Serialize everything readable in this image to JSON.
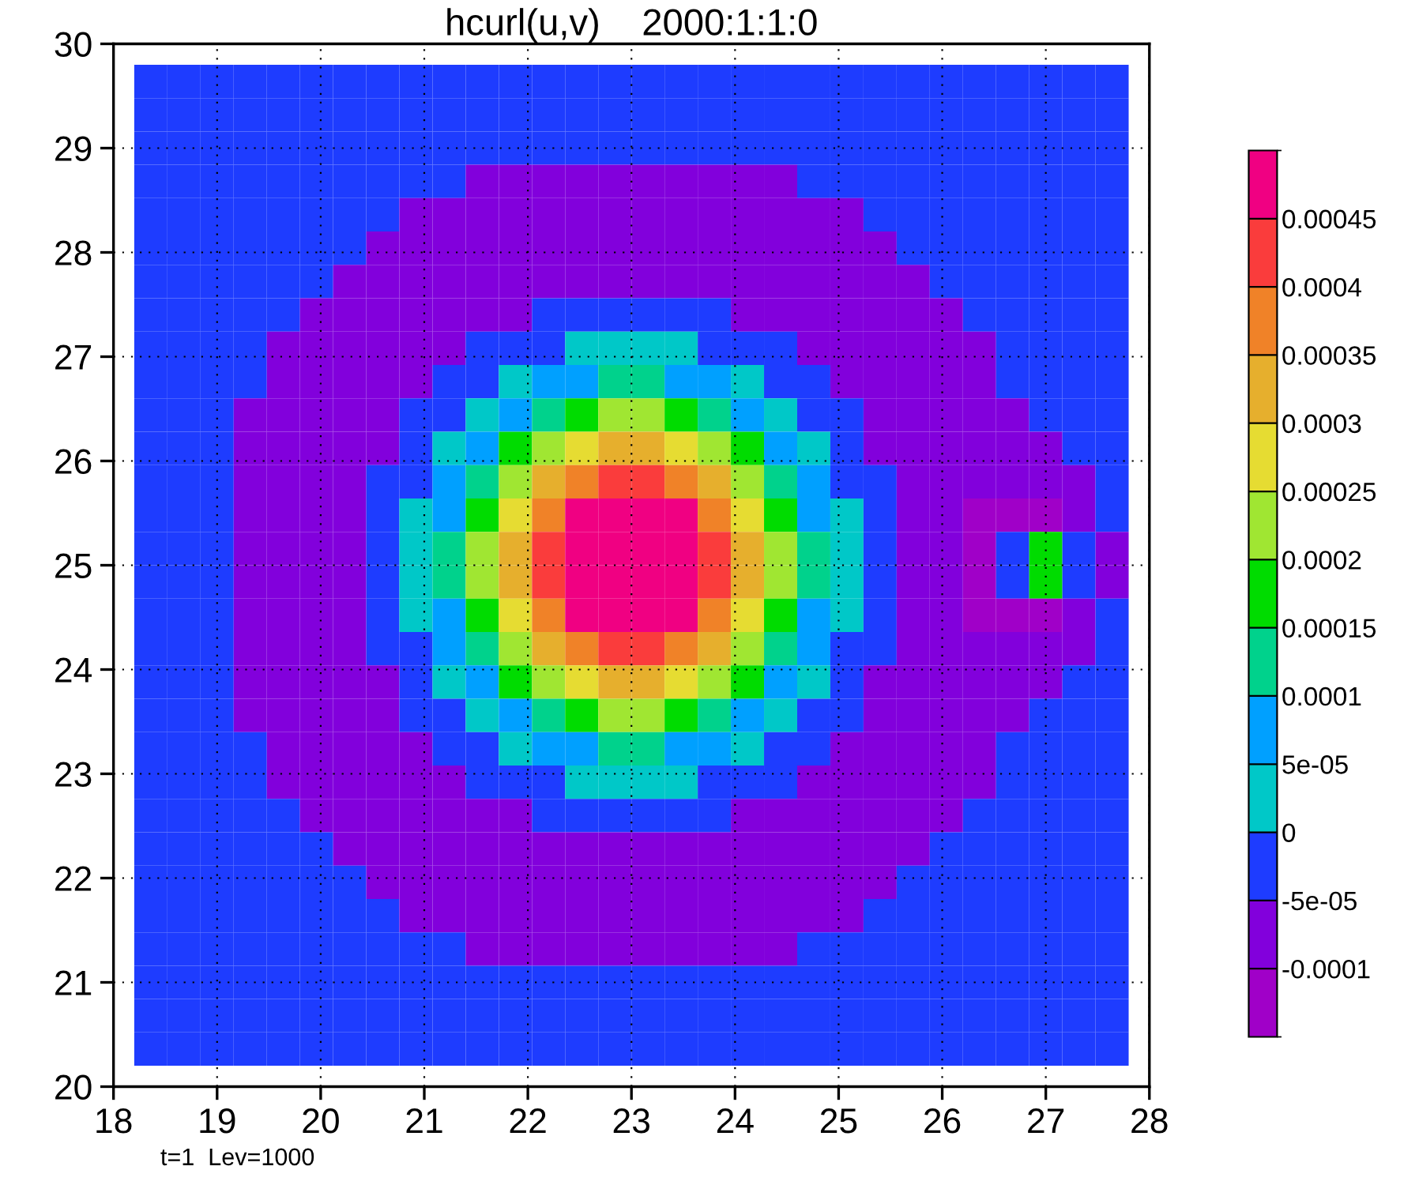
{
  "chart_data": {
    "type": "heatmap",
    "title": "hcurl(u,v)    2000:1:1:0",
    "annotations": [
      "t=1  Lev=1000"
    ],
    "x": [
      18.36,
      18.68,
      19.0,
      19.32,
      19.64,
      19.96,
      20.28,
      20.6,
      20.92,
      21.24,
      21.56,
      21.88,
      22.2,
      22.52,
      22.84,
      23.16,
      23.48,
      23.8,
      24.12,
      24.44,
      24.76,
      25.08,
      25.4,
      25.72,
      26.04,
      26.36,
      26.68,
      27.0,
      27.32,
      27.64
    ],
    "y": [
      29.64,
      29.32,
      29.0,
      28.68,
      28.36,
      28.04,
      27.72,
      27.4,
      27.08,
      26.76,
      26.44,
      26.12,
      25.8,
      25.48,
      25.16,
      24.84,
      24.52,
      24.2,
      23.88,
      23.56,
      23.24,
      22.92,
      22.6,
      22.28,
      21.96,
      21.64,
      21.32,
      21.0,
      20.68,
      20.36
    ],
    "cells": [
      [
        -2.5e-05,
        -2.5e-05,
        -2.5e-05,
        -2.5e-05,
        -2.5e-05,
        -2.5e-05,
        -2.5e-05,
        -2.5e-05,
        -2.5e-05,
        -2.5e-05,
        -2.5e-05,
        -2.5e-05,
        -2.5e-05,
        -2.5e-05,
        -2.5e-05,
        -2.5e-05,
        -2.5e-05,
        -2.5e-05,
        -2.5e-05,
        -2.5e-05,
        -2.5e-05,
        -2.5e-05,
        -2.5e-05,
        -2.5e-05,
        -2.5e-05,
        -2.5e-05,
        -2.5e-05,
        -2.5e-05,
        -2.5e-05,
        -2.5e-05
      ],
      [
        -2.5e-05,
        -2.5e-05,
        -2.5e-05,
        -2.5e-05,
        -2.5e-05,
        -2.5e-05,
        -2.5e-05,
        -2.5e-05,
        -2.5e-05,
        -2.5e-05,
        -2.5e-05,
        -2.5e-05,
        -2.5e-05,
        -2.5e-05,
        -2.5e-05,
        -2.5e-05,
        -2.5e-05,
        -2.5e-05,
        -2.5e-05,
        -2.5e-05,
        -2.5e-05,
        -2.5e-05,
        -2.5e-05,
        -2.5e-05,
        -2.5e-05,
        -2.5e-05,
        -2.5e-05,
        -2.5e-05,
        -2.5e-05,
        -2.5e-05
      ],
      [
        -2.5e-05,
        -2.5e-05,
        -2.5e-05,
        -2.5e-05,
        -2.5e-05,
        -2.5e-05,
        -2.5e-05,
        -2.5e-05,
        -2.5e-05,
        -2.5e-05,
        -2.5e-05,
        -2.5e-05,
        -2.5e-05,
        -2.5e-05,
        -2.5e-05,
        -2.5e-05,
        -2.5e-05,
        -2.5e-05,
        -2.5e-05,
        -2.5e-05,
        -2.5e-05,
        -2.5e-05,
        -2.5e-05,
        -2.5e-05,
        -2.5e-05,
        -2.5e-05,
        -2.5e-05,
        -2.5e-05,
        -2.5e-05,
        -2.5e-05
      ],
      [
        -2.5e-05,
        -2.5e-05,
        -2.5e-05,
        -2.5e-05,
        -2.5e-05,
        -2.5e-05,
        -2.5e-05,
        -2.5e-05,
        -2.5e-05,
        -2.5e-05,
        -7.5e-05,
        -7.5e-05,
        -7.5e-05,
        -7.5e-05,
        -7.5e-05,
        -7.5e-05,
        -7.5e-05,
        -7.5e-05,
        -7.5e-05,
        -7.5e-05,
        -2.5e-05,
        -2.5e-05,
        -2.5e-05,
        -2.5e-05,
        -2.5e-05,
        -2.5e-05,
        -2.5e-05,
        -2.5e-05,
        -2.5e-05,
        -2.5e-05
      ],
      [
        -2.5e-05,
        -2.5e-05,
        -2.5e-05,
        -2.5e-05,
        -2.5e-05,
        -2.5e-05,
        -2.5e-05,
        -2.5e-05,
        -7.5e-05,
        -7.5e-05,
        -7.5e-05,
        -7.5e-05,
        -7.5e-05,
        -7.5e-05,
        -7.5e-05,
        -7.5e-05,
        -7.5e-05,
        -7.5e-05,
        -7.5e-05,
        -7.5e-05,
        -7.5e-05,
        -7.5e-05,
        -2.5e-05,
        -2.5e-05,
        -2.5e-05,
        -2.5e-05,
        -2.5e-05,
        -2.5e-05,
        -2.5e-05,
        -2.5e-05
      ],
      [
        -2.5e-05,
        -2.5e-05,
        -2.5e-05,
        -2.5e-05,
        -2.5e-05,
        -2.5e-05,
        -2.5e-05,
        -7.5e-05,
        -7.5e-05,
        -7.5e-05,
        -7.5e-05,
        -7.5e-05,
        -7.5e-05,
        -7.5e-05,
        -7.5e-05,
        -7.5e-05,
        -7.5e-05,
        -7.5e-05,
        -7.5e-05,
        -7.5e-05,
        -7.5e-05,
        -7.5e-05,
        -7.5e-05,
        -2.5e-05,
        -2.5e-05,
        -2.5e-05,
        -2.5e-05,
        -2.5e-05,
        -2.5e-05,
        -2.5e-05
      ],
      [
        -2.5e-05,
        -2.5e-05,
        -2.5e-05,
        -2.5e-05,
        -2.5e-05,
        -2.5e-05,
        -7.5e-05,
        -7.5e-05,
        -7.5e-05,
        -7.5e-05,
        -7.5e-05,
        -7.5e-05,
        -7.5e-05,
        -7.5e-05,
        -7.5e-05,
        -7.5e-05,
        -7.5e-05,
        -7.5e-05,
        -7.5e-05,
        -7.5e-05,
        -7.5e-05,
        -7.5e-05,
        -7.5e-05,
        -7.5e-05,
        -2.5e-05,
        -2.5e-05,
        -2.5e-05,
        -2.5e-05,
        -2.5e-05,
        -2.5e-05
      ],
      [
        -2.5e-05,
        -2.5e-05,
        -2.5e-05,
        -2.5e-05,
        -2.5e-05,
        -7.5e-05,
        -7.5e-05,
        -7.5e-05,
        -7.5e-05,
        -7.5e-05,
        -7.5e-05,
        -7.5e-05,
        -2.5e-05,
        -2.5e-05,
        -2.5e-05,
        -2.5e-05,
        -2.5e-05,
        -2.5e-05,
        -7.5e-05,
        -7.5e-05,
        -7.5e-05,
        -7.5e-05,
        -7.5e-05,
        -7.5e-05,
        -7.5e-05,
        -2.5e-05,
        -2.5e-05,
        -2.5e-05,
        -2.5e-05,
        -2.5e-05
      ],
      [
        -2.5e-05,
        -2.5e-05,
        -2.5e-05,
        -2.5e-05,
        -7.5e-05,
        -7.5e-05,
        -7.5e-05,
        -7.5e-05,
        -7.5e-05,
        -7.5e-05,
        -2.5e-05,
        -2.5e-05,
        -2.5e-05,
        2.5e-05,
        2.5e-05,
        2.5e-05,
        2.5e-05,
        -2.5e-05,
        -2.5e-05,
        -2.5e-05,
        -7.5e-05,
        -7.5e-05,
        -7.5e-05,
        -7.5e-05,
        -7.5e-05,
        -7.5e-05,
        -2.5e-05,
        -2.5e-05,
        -2.5e-05,
        -2.5e-05
      ],
      [
        -2.5e-05,
        -2.5e-05,
        -2.5e-05,
        -2.5e-05,
        -7.5e-05,
        -7.5e-05,
        -7.5e-05,
        -7.5e-05,
        -7.5e-05,
        -2.5e-05,
        -2.5e-05,
        2.5e-05,
        7.5e-05,
        7.5e-05,
        0.000125,
        0.000125,
        7.5e-05,
        7.5e-05,
        2.5e-05,
        -2.5e-05,
        -2.5e-05,
        -7.5e-05,
        -7.5e-05,
        -7.5e-05,
        -7.5e-05,
        -7.5e-05,
        -2.5e-05,
        -2.5e-05,
        -2.5e-05,
        -2.5e-05
      ],
      [
        -2.5e-05,
        -2.5e-05,
        -2.5e-05,
        -7.5e-05,
        -7.5e-05,
        -7.5e-05,
        -7.5e-05,
        -7.5e-05,
        -2.5e-05,
        -2.5e-05,
        2.5e-05,
        7.5e-05,
        0.000125,
        0.000175,
        0.000225,
        0.000225,
        0.000175,
        0.000125,
        7.5e-05,
        2.5e-05,
        -2.5e-05,
        -2.5e-05,
        -7.5e-05,
        -7.5e-05,
        -7.5e-05,
        -7.5e-05,
        -7.5e-05,
        -2.5e-05,
        -2.5e-05,
        -2.5e-05
      ],
      [
        -2.5e-05,
        -2.5e-05,
        -2.5e-05,
        -7.5e-05,
        -7.5e-05,
        -7.5e-05,
        -7.5e-05,
        -7.5e-05,
        -2.5e-05,
        2.5e-05,
        7.5e-05,
        0.000175,
        0.000225,
        0.000275,
        0.000325,
        0.000325,
        0.000275,
        0.000225,
        0.000175,
        7.5e-05,
        2.5e-05,
        -2.5e-05,
        -7.5e-05,
        -7.5e-05,
        -7.5e-05,
        -7.5e-05,
        -7.5e-05,
        -7.5e-05,
        -2.5e-05,
        -2.5e-05
      ],
      [
        -2.5e-05,
        -2.5e-05,
        -2.5e-05,
        -7.5e-05,
        -7.5e-05,
        -7.5e-05,
        -7.5e-05,
        -2.5e-05,
        -2.5e-05,
        7.5e-05,
        0.000125,
        0.000225,
        0.000325,
        0.000375,
        0.000425,
        0.000425,
        0.000375,
        0.000325,
        0.000225,
        0.000125,
        7.5e-05,
        -2.5e-05,
        -2.5e-05,
        -7.5e-05,
        -7.5e-05,
        -7.5e-05,
        -7.5e-05,
        -7.5e-05,
        -7.5e-05,
        -2.5e-05
      ],
      [
        -2.5e-05,
        -2.5e-05,
        -2.5e-05,
        -7.5e-05,
        -7.5e-05,
        -7.5e-05,
        -7.5e-05,
        -2.5e-05,
        2.5e-05,
        7.5e-05,
        0.000175,
        0.000275,
        0.000375,
        0.00048,
        0.00048,
        0.00048,
        0.00048,
        0.000375,
        0.000275,
        0.000175,
        7.5e-05,
        2.5e-05,
        -2.5e-05,
        -7.5e-05,
        -7.5e-05,
        -0.00012,
        -0.00012,
        -0.00012,
        -7.5e-05,
        -2.5e-05
      ],
      [
        -2.5e-05,
        -2.5e-05,
        -2.5e-05,
        -7.5e-05,
        -7.5e-05,
        -7.5e-05,
        -7.5e-05,
        -2.5e-05,
        2.5e-05,
        0.000125,
        0.000225,
        0.000325,
        0.000425,
        0.00048,
        0.00048,
        0.00048,
        0.00048,
        0.000425,
        0.000325,
        0.000225,
        0.000125,
        2.5e-05,
        -2.5e-05,
        -7.5e-05,
        -7.5e-05,
        -0.00012,
        -2.5e-05,
        0.000175,
        -2.5e-05,
        -7.5e-05
      ],
      [
        -2.5e-05,
        -2.5e-05,
        -2.5e-05,
        -7.5e-05,
        -7.5e-05,
        -7.5e-05,
        -7.5e-05,
        -2.5e-05,
        2.5e-05,
        0.000125,
        0.000225,
        0.000325,
        0.000425,
        0.00048,
        0.00048,
        0.00048,
        0.00048,
        0.000425,
        0.000325,
        0.000225,
        0.000125,
        2.5e-05,
        -2.5e-05,
        -7.5e-05,
        -7.5e-05,
        -0.00012,
        -2.5e-05,
        0.000175,
        -2.5e-05,
        -7.5e-05
      ],
      [
        -2.5e-05,
        -2.5e-05,
        -2.5e-05,
        -7.5e-05,
        -7.5e-05,
        -7.5e-05,
        -7.5e-05,
        -2.5e-05,
        2.5e-05,
        7.5e-05,
        0.000175,
        0.000275,
        0.000375,
        0.00048,
        0.00048,
        0.00048,
        0.00048,
        0.000375,
        0.000275,
        0.000175,
        7.5e-05,
        2.5e-05,
        -2.5e-05,
        -7.5e-05,
        -7.5e-05,
        -0.00012,
        -0.00012,
        -0.00012,
        -7.5e-05,
        -2.5e-05
      ],
      [
        -2.5e-05,
        -2.5e-05,
        -2.5e-05,
        -7.5e-05,
        -7.5e-05,
        -7.5e-05,
        -7.5e-05,
        -2.5e-05,
        -2.5e-05,
        7.5e-05,
        0.000125,
        0.000225,
        0.000325,
        0.000375,
        0.000425,
        0.000425,
        0.000375,
        0.000325,
        0.000225,
        0.000125,
        7.5e-05,
        -2.5e-05,
        -2.5e-05,
        -7.5e-05,
        -7.5e-05,
        -7.5e-05,
        -7.5e-05,
        -7.5e-05,
        -7.5e-05,
        -2.5e-05
      ],
      [
        -2.5e-05,
        -2.5e-05,
        -2.5e-05,
        -7.5e-05,
        -7.5e-05,
        -7.5e-05,
        -7.5e-05,
        -7.5e-05,
        -2.5e-05,
        2.5e-05,
        7.5e-05,
        0.000175,
        0.000225,
        0.000275,
        0.000325,
        0.000325,
        0.000275,
        0.000225,
        0.000175,
        7.5e-05,
        2.5e-05,
        -2.5e-05,
        -7.5e-05,
        -7.5e-05,
        -7.5e-05,
        -7.5e-05,
        -7.5e-05,
        -7.5e-05,
        -2.5e-05,
        -2.5e-05
      ],
      [
        -2.5e-05,
        -2.5e-05,
        -2.5e-05,
        -7.5e-05,
        -7.5e-05,
        -7.5e-05,
        -7.5e-05,
        -7.5e-05,
        -2.5e-05,
        -2.5e-05,
        2.5e-05,
        7.5e-05,
        0.000125,
        0.000175,
        0.000225,
        0.000225,
        0.000175,
        0.000125,
        7.5e-05,
        2.5e-05,
        -2.5e-05,
        -2.5e-05,
        -7.5e-05,
        -7.5e-05,
        -7.5e-05,
        -7.5e-05,
        -7.5e-05,
        -2.5e-05,
        -2.5e-05,
        -2.5e-05
      ],
      [
        -2.5e-05,
        -2.5e-05,
        -2.5e-05,
        -2.5e-05,
        -7.5e-05,
        -7.5e-05,
        -7.5e-05,
        -7.5e-05,
        -7.5e-05,
        -2.5e-05,
        -2.5e-05,
        2.5e-05,
        7.5e-05,
        7.5e-05,
        0.000125,
        0.000125,
        7.5e-05,
        7.5e-05,
        2.5e-05,
        -2.5e-05,
        -2.5e-05,
        -7.5e-05,
        -7.5e-05,
        -7.5e-05,
        -7.5e-05,
        -7.5e-05,
        -2.5e-05,
        -2.5e-05,
        -2.5e-05,
        -2.5e-05
      ],
      [
        -2.5e-05,
        -2.5e-05,
        -2.5e-05,
        -2.5e-05,
        -7.5e-05,
        -7.5e-05,
        -7.5e-05,
        -7.5e-05,
        -7.5e-05,
        -7.5e-05,
        -2.5e-05,
        -2.5e-05,
        -2.5e-05,
        2.5e-05,
        2.5e-05,
        2.5e-05,
        2.5e-05,
        -2.5e-05,
        -2.5e-05,
        -2.5e-05,
        -7.5e-05,
        -7.5e-05,
        -7.5e-05,
        -7.5e-05,
        -7.5e-05,
        -7.5e-05,
        -2.5e-05,
        -2.5e-05,
        -2.5e-05,
        -2.5e-05
      ],
      [
        -2.5e-05,
        -2.5e-05,
        -2.5e-05,
        -2.5e-05,
        -2.5e-05,
        -7.5e-05,
        -7.5e-05,
        -7.5e-05,
        -7.5e-05,
        -7.5e-05,
        -7.5e-05,
        -7.5e-05,
        -2.5e-05,
        -2.5e-05,
        -2.5e-05,
        -2.5e-05,
        -2.5e-05,
        -2.5e-05,
        -7.5e-05,
        -7.5e-05,
        -7.5e-05,
        -7.5e-05,
        -7.5e-05,
        -7.5e-05,
        -7.5e-05,
        -2.5e-05,
        -2.5e-05,
        -2.5e-05,
        -2.5e-05,
        -2.5e-05
      ],
      [
        -2.5e-05,
        -2.5e-05,
        -2.5e-05,
        -2.5e-05,
        -2.5e-05,
        -2.5e-05,
        -7.5e-05,
        -7.5e-05,
        -7.5e-05,
        -7.5e-05,
        -7.5e-05,
        -7.5e-05,
        -7.5e-05,
        -7.5e-05,
        -7.5e-05,
        -7.5e-05,
        -7.5e-05,
        -7.5e-05,
        -7.5e-05,
        -7.5e-05,
        -7.5e-05,
        -7.5e-05,
        -7.5e-05,
        -7.5e-05,
        -2.5e-05,
        -2.5e-05,
        -2.5e-05,
        -2.5e-05,
        -2.5e-05,
        -2.5e-05
      ],
      [
        -2.5e-05,
        -2.5e-05,
        -2.5e-05,
        -2.5e-05,
        -2.5e-05,
        -2.5e-05,
        -2.5e-05,
        -7.5e-05,
        -7.5e-05,
        -7.5e-05,
        -7.5e-05,
        -7.5e-05,
        -7.5e-05,
        -7.5e-05,
        -7.5e-05,
        -7.5e-05,
        -7.5e-05,
        -7.5e-05,
        -7.5e-05,
        -7.5e-05,
        -7.5e-05,
        -7.5e-05,
        -7.5e-05,
        -2.5e-05,
        -2.5e-05,
        -2.5e-05,
        -2.5e-05,
        -2.5e-05,
        -2.5e-05,
        -2.5e-05
      ],
      [
        -2.5e-05,
        -2.5e-05,
        -2.5e-05,
        -2.5e-05,
        -2.5e-05,
        -2.5e-05,
        -2.5e-05,
        -2.5e-05,
        -7.5e-05,
        -7.5e-05,
        -7.5e-05,
        -7.5e-05,
        -7.5e-05,
        -7.5e-05,
        -7.5e-05,
        -7.5e-05,
        -7.5e-05,
        -7.5e-05,
        -7.5e-05,
        -7.5e-05,
        -7.5e-05,
        -7.5e-05,
        -2.5e-05,
        -2.5e-05,
        -2.5e-05,
        -2.5e-05,
        -2.5e-05,
        -2.5e-05,
        -2.5e-05,
        -2.5e-05
      ],
      [
        -2.5e-05,
        -2.5e-05,
        -2.5e-05,
        -2.5e-05,
        -2.5e-05,
        -2.5e-05,
        -2.5e-05,
        -2.5e-05,
        -2.5e-05,
        -2.5e-05,
        -7.5e-05,
        -7.5e-05,
        -7.5e-05,
        -7.5e-05,
        -7.5e-05,
        -7.5e-05,
        -7.5e-05,
        -7.5e-05,
        -7.5e-05,
        -7.5e-05,
        -2.5e-05,
        -2.5e-05,
        -2.5e-05,
        -2.5e-05,
        -2.5e-05,
        -2.5e-05,
        -2.5e-05,
        -2.5e-05,
        -2.5e-05,
        -2.5e-05
      ],
      [
        -2.5e-05,
        -2.5e-05,
        -2.5e-05,
        -2.5e-05,
        -2.5e-05,
        -2.5e-05,
        -2.5e-05,
        -2.5e-05,
        -2.5e-05,
        -2.5e-05,
        -2.5e-05,
        -2.5e-05,
        -2.5e-05,
        -2.5e-05,
        -2.5e-05,
        -2.5e-05,
        -2.5e-05,
        -2.5e-05,
        -2.5e-05,
        -2.5e-05,
        -2.5e-05,
        -2.5e-05,
        -2.5e-05,
        -2.5e-05,
        -2.5e-05,
        -2.5e-05,
        -2.5e-05,
        -2.5e-05,
        -2.5e-05,
        -2.5e-05
      ],
      [
        -2.5e-05,
        -2.5e-05,
        -2.5e-05,
        -2.5e-05,
        -2.5e-05,
        -2.5e-05,
        -2.5e-05,
        -2.5e-05,
        -2.5e-05,
        -2.5e-05,
        -2.5e-05,
        -2.5e-05,
        -2.5e-05,
        -2.5e-05,
        -2.5e-05,
        -2.5e-05,
        -2.5e-05,
        -2.5e-05,
        -2.5e-05,
        -2.5e-05,
        -2.5e-05,
        -2.5e-05,
        -2.5e-05,
        -2.5e-05,
        -2.5e-05,
        -2.5e-05,
        -2.5e-05,
        -2.5e-05,
        -2.5e-05,
        -2.5e-05
      ],
      [
        -2.5e-05,
        -2.5e-05,
        -2.5e-05,
        -2.5e-05,
        -2.5e-05,
        -2.5e-05,
        -2.5e-05,
        -2.5e-05,
        -2.5e-05,
        -2.5e-05,
        -2.5e-05,
        -2.5e-05,
        -2.5e-05,
        -2.5e-05,
        -2.5e-05,
        -2.5e-05,
        -2.5e-05,
        -2.5e-05,
        -2.5e-05,
        -2.5e-05,
        -2.5e-05,
        -2.5e-05,
        -2.5e-05,
        -2.5e-05,
        -2.5e-05,
        -2.5e-05,
        -2.5e-05,
        -2.5e-05,
        -2.5e-05,
        -2.5e-05
      ]
    ],
    "colors": [
      "#a000c8",
      "#8200dc",
      "#1e3cff",
      "#00c8c8",
      "#00a0ff",
      "#00d28c",
      "#00dc00",
      "#a0e632",
      "#e6dc32",
      "#e6af2d",
      "#f08228",
      "#fa3c3c",
      "#f00082"
    ],
    "clim": [
      -0.00015,
      0.0005
    ],
    "cticks": [
      -0.0001,
      -5e-05,
      0,
      5e-05,
      0.0001,
      0.00015,
      0.0002,
      0.00025,
      0.0003,
      0.00035,
      0.0004,
      0.00045
    ],
    "xlim": [
      18,
      28
    ],
    "ylim": [
      20,
      30
    ],
    "xticks": [
      18,
      19,
      20,
      21,
      22,
      23,
      24,
      25,
      26,
      27,
      28
    ],
    "yticks": [
      20,
      21,
      22,
      23,
      24,
      25,
      26,
      27,
      28,
      29,
      30
    ],
    "grid": true
  }
}
